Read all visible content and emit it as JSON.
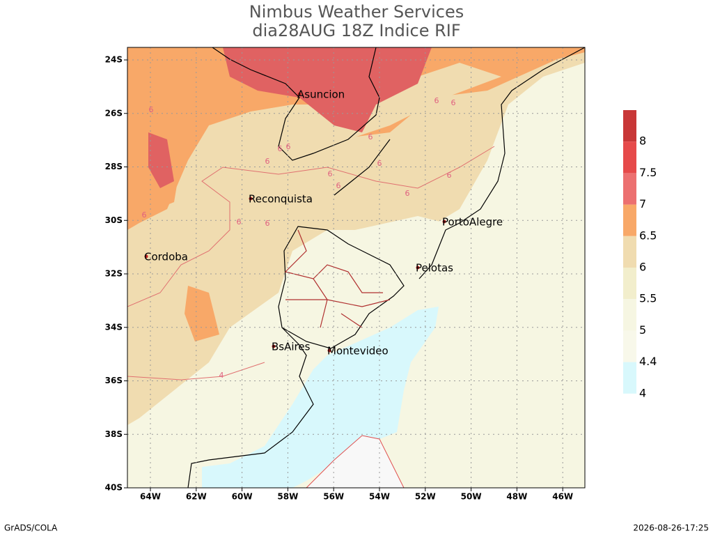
{
  "header": {
    "title": "Nimbus Weather Services",
    "subtitle": "dia28AUG 18Z Indice RIF"
  },
  "map": {
    "lat_labels": [
      "24S",
      "26S",
      "28S",
      "30S",
      "32S",
      "34S",
      "36S",
      "38S",
      "40S"
    ],
    "lon_labels": [
      "64W",
      "62W",
      "60W",
      "58W",
      "56W",
      "54W",
      "52W",
      "50W",
      "48W",
      "46W"
    ],
    "cities": [
      "Asuncion",
      "Reconquista",
      "Cordoba",
      "PortoAlegre",
      "Pelotas",
      "BsAires",
      "Montevideo"
    ],
    "contour_labels": [
      "6",
      "6",
      "6",
      "6",
      "6",
      "6",
      "6",
      "6",
      "6",
      "6",
      "6",
      "6",
      "6",
      "6",
      "6",
      "4"
    ]
  },
  "colorbar": [
    {
      "label": "8",
      "color": "#c83737"
    },
    {
      "label": "7.5",
      "color": "#e64a4a"
    },
    {
      "label": "7",
      "color": "#ec7070"
    },
    {
      "label": "6.5",
      "color": "#f8a868"
    },
    {
      "label": "6",
      "color": "#f0dcb0"
    },
    {
      "label": "5.5",
      "color": "#f2eecc"
    },
    {
      "label": "5",
      "color": "#f6f6e2"
    },
    {
      "label": "4.4",
      "color": "#f8f8ea"
    },
    {
      "label": "4",
      "color": "#d8f8fc"
    }
  ],
  "footer": {
    "left": "GrADS/COLA",
    "right": "2026-08-26-17:25"
  }
}
